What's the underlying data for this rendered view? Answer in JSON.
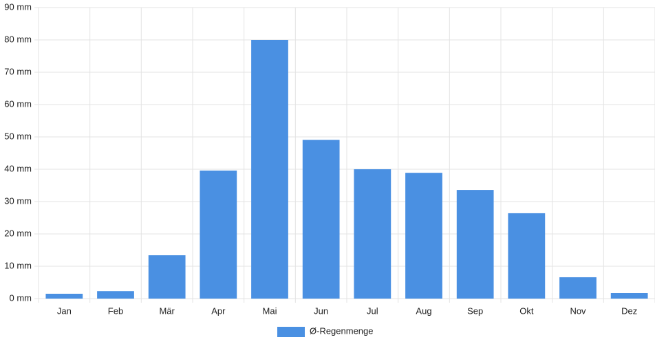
{
  "chart_data": {
    "type": "bar",
    "categories": [
      "Jan",
      "Feb",
      "Mär",
      "Apr",
      "Mai",
      "Jun",
      "Jul",
      "Aug",
      "Sep",
      "Okt",
      "Nov",
      "Dez"
    ],
    "series": [
      {
        "name": "Ø-Regenmenge",
        "color": "#4a90e2",
        "values": [
          1.5,
          2.3,
          13.4,
          39.6,
          80,
          49.1,
          40,
          38.9,
          33.6,
          26.4,
          6.6,
          1.7
        ]
      }
    ],
    "ylim": [
      0,
      90
    ],
    "yticks": [
      {
        "value": 0,
        "label": "0 mm"
      },
      {
        "value": 10,
        "label": "10 mm"
      },
      {
        "value": 20,
        "label": "20 mm"
      },
      {
        "value": 30,
        "label": "30 mm"
      },
      {
        "value": 40,
        "label": "40 mm"
      },
      {
        "value": 50,
        "label": "50 mm"
      },
      {
        "value": 60,
        "label": "60 mm"
      },
      {
        "value": 70,
        "label": "70 mm"
      },
      {
        "value": 80,
        "label": "80 mm"
      },
      {
        "value": 90,
        "label": "90 mm"
      }
    ],
    "grid": true,
    "legend": "bottom"
  }
}
